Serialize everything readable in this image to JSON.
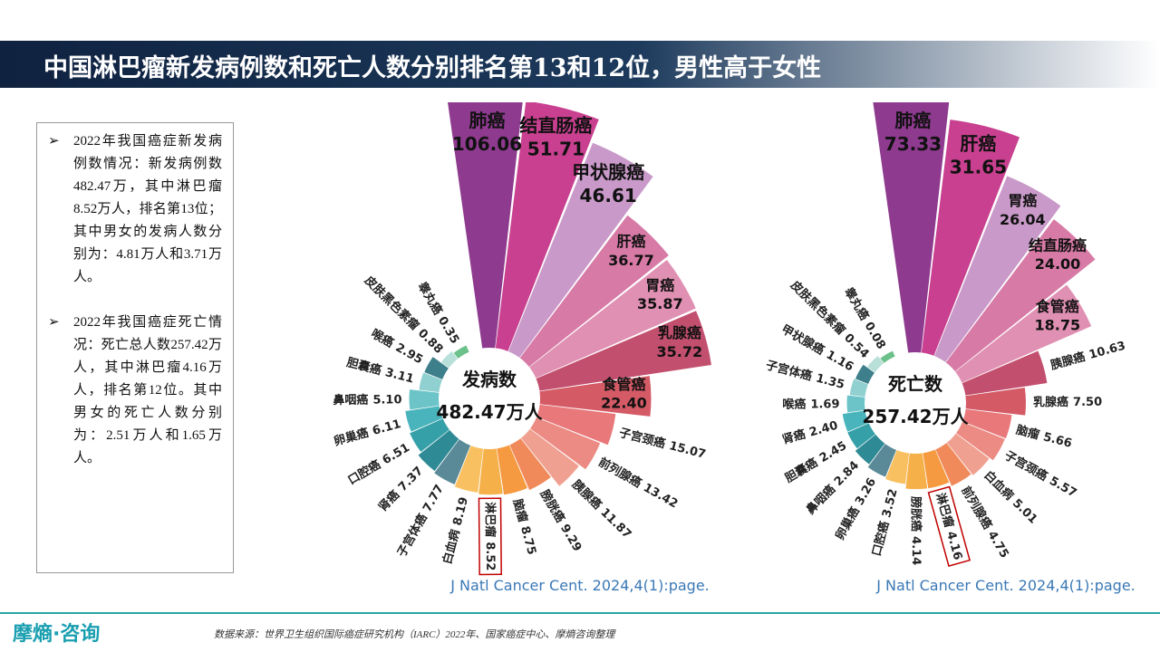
{
  "header": {
    "title": "中国淋巴瘤新发病例数和死亡人数分别排名第13和12位，男性高于女性"
  },
  "notes": [
    "2022年我国癌症新发病例数情况：新发病例数482.47万，其中淋巴瘤8.52万人，排名第13位；其中男女的发病人数分别为：4.81万人和3.71万人。",
    "2022年我国癌症死亡情况：死亡总人数257.42万人，其中淋巴瘤4.16万人，排名第12位。其中男女的死亡人数分别为：2.51万人和1.65万人。"
  ],
  "chart_data": [
    {
      "type": "rose",
      "center_label": "发病数",
      "center_value": "482.47万人",
      "note": "J Natl Cancer Cent. 2024,4(1):page.",
      "highlight": 12,
      "categories": [
        "肺癌",
        "结直肠癌",
        "甲状腺癌",
        "肝癌",
        "胃癌",
        "乳腺癌",
        "食管癌",
        "子宫颈癌",
        "前列腺癌",
        "胰腺癌",
        "膀胱癌",
        "脑瘤",
        "淋巴瘤",
        "白血病",
        "子宫体癌",
        "肾癌",
        "口腔癌",
        "卵巢癌",
        "鼻咽癌",
        "胆囊癌",
        "喉癌",
        "皮肤黑色素瘤",
        "睾丸癌"
      ],
      "values": [
        106.06,
        51.71,
        46.61,
        36.77,
        35.87,
        35.72,
        22.4,
        15.07,
        13.42,
        11.87,
        9.29,
        8.75,
        8.52,
        8.19,
        7.77,
        7.37,
        6.51,
        6.11,
        5.1,
        3.11,
        2.95,
        0.88,
        0.35
      ],
      "value_labels": [
        "106.06",
        "51.71",
        "46.61",
        "36.77",
        "35.87",
        "35.72",
        "22.40",
        "15.07",
        "13.42",
        "11.87",
        "9.29",
        "8.75",
        "8.52",
        "8.19",
        "7.77",
        "7.37",
        "6.51",
        "6.11",
        "5.10",
        "3.11",
        "2.95",
        "0.88",
        "0.35"
      ],
      "colors": [
        "#8e3a8f",
        "#c8408f",
        "#c99ac9",
        "#d77aa6",
        "#e090b2",
        "#c24f6e",
        "#d45a66",
        "#e8787a",
        "#ec8b84",
        "#f0a090",
        "#f08a5a",
        "#f59a40",
        "#f5b04a",
        "#f8c060",
        "#5a8a98",
        "#2e8a94",
        "#36a0a8",
        "#4ab4bc",
        "#6cc4c8",
        "#90d0d0",
        "#3d7f8a",
        "#b8e0d8",
        "#6cc08a"
      ]
    },
    {
      "type": "rose",
      "center_label": "死亡数",
      "center_value": "257.42万人",
      "note": "J Natl Cancer Cent. 2024,4(1):page.",
      "highlight": 11,
      "categories": [
        "肺癌",
        "肝癌",
        "胃癌",
        "结直肠癌",
        "食管癌",
        "胰腺癌",
        "乳腺癌",
        "脑瘤",
        "子宫颈癌",
        "白血病",
        "前列腺癌",
        "淋巴瘤",
        "膀胱癌",
        "口腔癌",
        "卵巢癌",
        "鼻咽癌",
        "胆囊癌",
        "肾癌",
        "喉癌",
        "子宫体癌",
        "甲状腺癌",
        "皮肤黑色素瘤",
        "睾丸癌"
      ],
      "values": [
        73.33,
        31.65,
        26.04,
        24,
        18.75,
        10.63,
        7.5,
        5.66,
        5.57,
        5.01,
        4.75,
        4.16,
        4.14,
        3.52,
        3.26,
        2.84,
        2.45,
        2.4,
        1.69,
        1.35,
        1.16,
        0.54,
        0.08
      ],
      "value_labels": [
        "73.33",
        "31.65",
        "26.04",
        "24.00",
        "18.75",
        "10.63",
        "7.50",
        "5.66",
        "5.57",
        "5.01",
        "4.75",
        "4.16",
        "4.14",
        "3.52",
        "3.26",
        "2.84",
        "2.45",
        "2.40",
        "1.69",
        "1.35",
        "1.16",
        "0.54",
        "0.08"
      ],
      "colors": [
        "#8e3a8f",
        "#c8408f",
        "#c99ac9",
        "#d77aa6",
        "#e090b2",
        "#c24f6e",
        "#d45a66",
        "#e8787a",
        "#ec8b84",
        "#f0a090",
        "#f08a5a",
        "#f59a40",
        "#f5b04a",
        "#f8c060",
        "#5a8a98",
        "#2e8a94",
        "#36a0a8",
        "#4ab4bc",
        "#6cc4c8",
        "#90d0d0",
        "#3d7f8a",
        "#b8e0d8",
        "#6cc08a"
      ]
    }
  ],
  "source": "数据来源：世界卫生组织国际癌症研究机构（IARC）2022年、国家癌症中心、摩熵咨询整理",
  "logo": "摩熵·咨询"
}
